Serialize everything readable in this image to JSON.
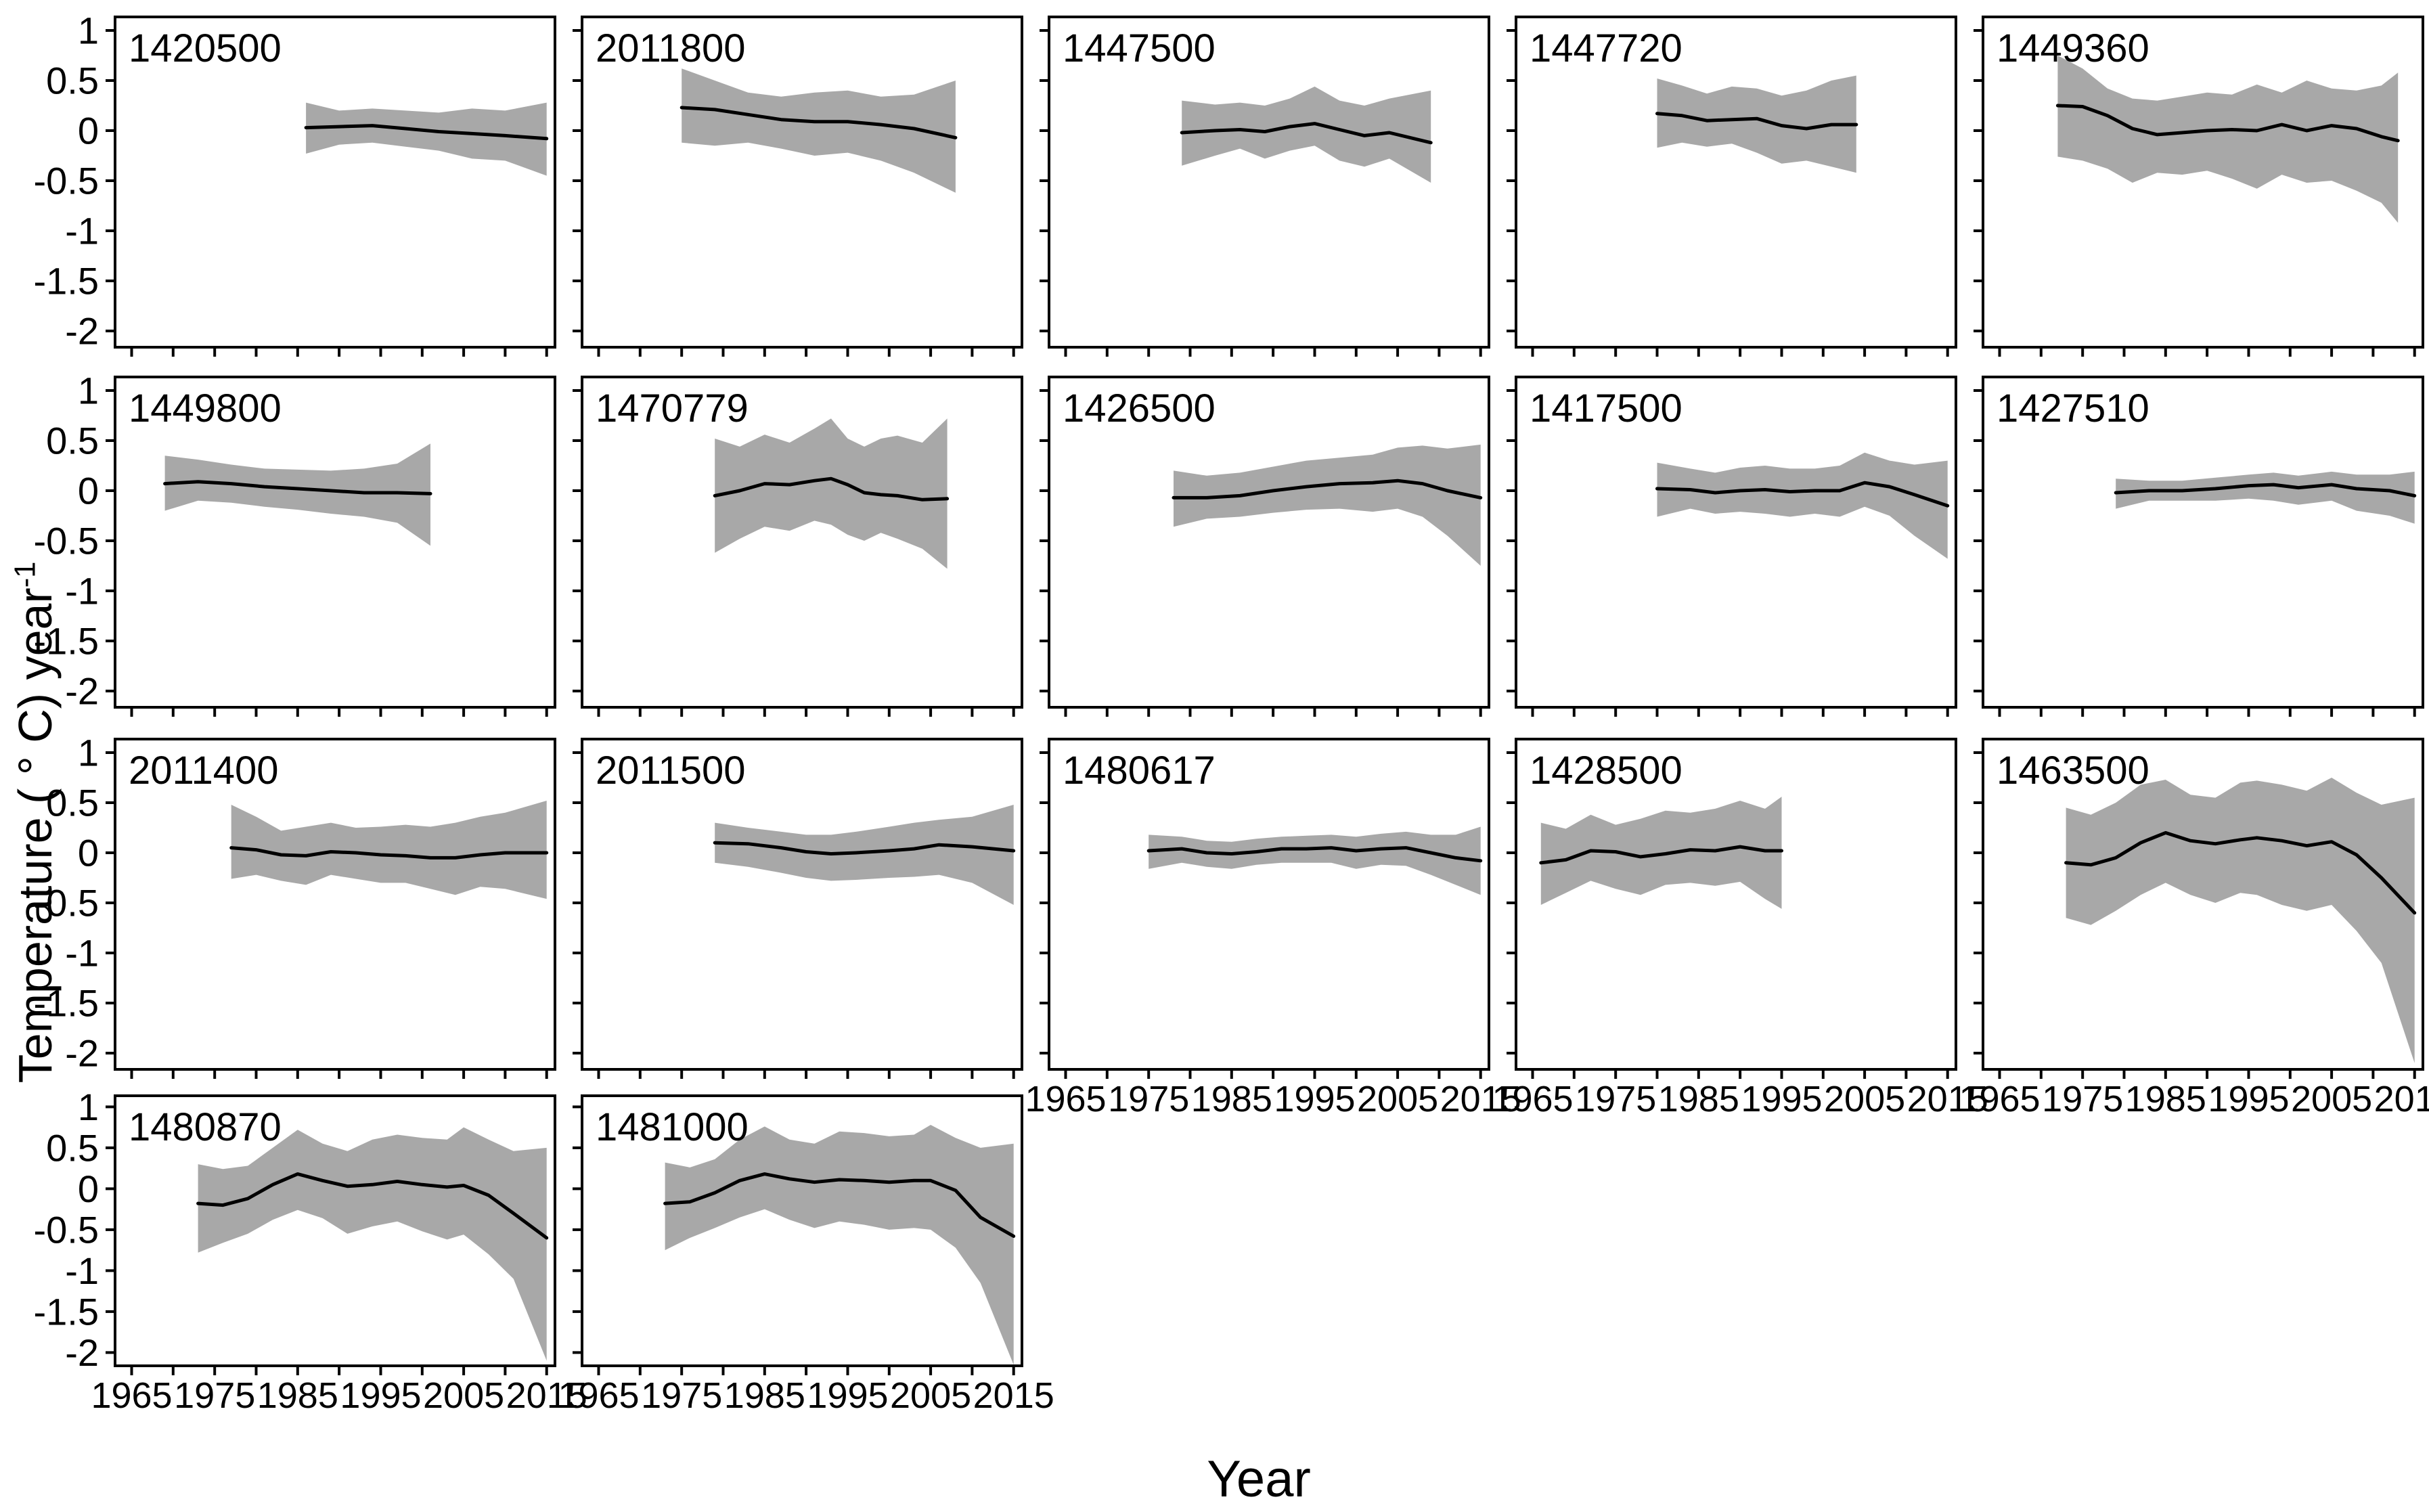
{
  "figure": {
    "x_axis_title": "Year",
    "y_axis_title_main": "Temperature ( ° C) year",
    "y_axis_title_sup": "-1",
    "line_color": "#000000",
    "band_color": "#a8a8a8",
    "background_color": "#ffffff",
    "y_ticks": [
      1,
      0.5,
      0,
      -0.5,
      -1,
      -1.5,
      -2
    ],
    "y_tick_labels": [
      "1",
      "0.5",
      "0",
      "-0.5",
      "-1",
      "-1.5",
      "-2"
    ],
    "x_minor_tick_years": [
      1965,
      1970,
      1975,
      1980,
      1985,
      1990,
      1995,
      2000,
      2005,
      2010,
      2015
    ],
    "x_labeled_years": [
      1965,
      1975,
      1985,
      1995,
      2005,
      2015
    ],
    "x_tick_labels": [
      "1965",
      "1975",
      "1985",
      "1995",
      "2005",
      "2015"
    ],
    "ylim": [
      -2,
      1
    ],
    "xlim": [
      1963,
      2016
    ],
    "grid": "off",
    "legend": "none",
    "columns": 5,
    "rows": 4
  },
  "chart_data": [
    {
      "type": "line",
      "station": "1420500",
      "x": [
        1986,
        1990,
        1994,
        1998,
        2002,
        2006,
        2010,
        2015
      ],
      "mean": [
        0.03,
        0.04,
        0.05,
        0.02,
        -0.01,
        -0.03,
        -0.05,
        -0.08
      ],
      "upper": [
        0.28,
        0.2,
        0.22,
        0.2,
        0.18,
        0.22,
        0.2,
        0.28
      ],
      "lower": [
        -0.23,
        -0.14,
        -0.12,
        -0.16,
        -0.2,
        -0.28,
        -0.3,
        -0.45
      ]
    },
    {
      "type": "line",
      "station": "2011800",
      "x": [
        1975,
        1979,
        1983,
        1987,
        1991,
        1995,
        1999,
        2003,
        2008
      ],
      "mean": [
        0.23,
        0.21,
        0.16,
        0.11,
        0.09,
        0.09,
        0.06,
        0.02,
        -0.07
      ],
      "upper": [
        0.62,
        0.5,
        0.38,
        0.34,
        0.38,
        0.4,
        0.34,
        0.36,
        0.5
      ],
      "lower": [
        -0.12,
        -0.15,
        -0.12,
        -0.18,
        -0.25,
        -0.22,
        -0.3,
        -0.42,
        -0.62
      ]
    },
    {
      "type": "line",
      "station": "1447500",
      "x": [
        1979,
        1983,
        1986,
        1989,
        1992,
        1995,
        1998,
        2001,
        2004,
        2009
      ],
      "mean": [
        -0.02,
        0.0,
        0.01,
        -0.01,
        0.04,
        0.07,
        0.01,
        -0.05,
        -0.02,
        -0.12
      ],
      "upper": [
        0.3,
        0.26,
        0.28,
        0.25,
        0.32,
        0.44,
        0.3,
        0.25,
        0.32,
        0.4
      ],
      "lower": [
        -0.35,
        -0.25,
        -0.18,
        -0.28,
        -0.2,
        -0.15,
        -0.3,
        -0.36,
        -0.28,
        -0.52
      ]
    },
    {
      "type": "line",
      "station": "1447720",
      "x": [
        1980,
        1983,
        1986,
        1989,
        1992,
        1995,
        1998,
        2001,
        2004
      ],
      "mean": [
        0.17,
        0.15,
        0.1,
        0.11,
        0.12,
        0.05,
        0.02,
        0.06,
        0.06
      ],
      "upper": [
        0.52,
        0.45,
        0.37,
        0.44,
        0.42,
        0.35,
        0.4,
        0.5,
        0.55
      ],
      "lower": [
        -0.17,
        -0.12,
        -0.16,
        -0.13,
        -0.22,
        -0.33,
        -0.3,
        -0.36,
        -0.42
      ]
    },
    {
      "type": "line",
      "station": "1449360",
      "x": [
        1972,
        1975,
        1978,
        1981,
        1984,
        1987,
        1990,
        1993,
        1996,
        1999,
        2002,
        2005,
        2008,
        2011,
        2013
      ],
      "mean": [
        0.25,
        0.24,
        0.15,
        0.02,
        -0.04,
        -0.02,
        0.0,
        0.01,
        0.0,
        0.06,
        0.0,
        0.05,
        0.02,
        -0.06,
        -0.1
      ],
      "upper": [
        0.75,
        0.62,
        0.42,
        0.32,
        0.3,
        0.34,
        0.38,
        0.36,
        0.46,
        0.38,
        0.5,
        0.42,
        0.4,
        0.45,
        0.58
      ],
      "lower": [
        -0.26,
        -0.3,
        -0.38,
        -0.52,
        -0.42,
        -0.44,
        -0.4,
        -0.48,
        -0.58,
        -0.44,
        -0.52,
        -0.5,
        -0.6,
        -0.72,
        -0.92
      ]
    },
    {
      "type": "line",
      "station": "1449800",
      "x": [
        1969,
        1973,
        1977,
        1981,
        1985,
        1989,
        1993,
        1997,
        2001
      ],
      "mean": [
        0.07,
        0.09,
        0.07,
        0.04,
        0.02,
        0.0,
        -0.02,
        -0.02,
        -0.03
      ],
      "upper": [
        0.35,
        0.31,
        0.26,
        0.22,
        0.21,
        0.2,
        0.22,
        0.27,
        0.47
      ],
      "lower": [
        -0.2,
        -0.1,
        -0.12,
        -0.16,
        -0.19,
        -0.23,
        -0.26,
        -0.32,
        -0.55
      ]
    },
    {
      "type": "line",
      "station": "1470779",
      "x": [
        1979,
        1982,
        1985,
        1988,
        1991,
        1993,
        1995,
        1997,
        1999,
        2001,
        2004,
        2007
      ],
      "mean": [
        -0.05,
        0.0,
        0.07,
        0.06,
        0.1,
        0.12,
        0.06,
        -0.02,
        -0.04,
        -0.05,
        -0.09,
        -0.08
      ],
      "upper": [
        0.52,
        0.44,
        0.56,
        0.48,
        0.62,
        0.72,
        0.52,
        0.44,
        0.52,
        0.55,
        0.48,
        0.72
      ],
      "lower": [
        -0.62,
        -0.48,
        -0.36,
        -0.4,
        -0.3,
        -0.34,
        -0.44,
        -0.5,
        -0.42,
        -0.48,
        -0.58,
        -0.78
      ]
    },
    {
      "type": "line",
      "station": "1426500",
      "x": [
        1978,
        1982,
        1986,
        1990,
        1994,
        1998,
        2002,
        2005,
        2008,
        2011,
        2015
      ],
      "mean": [
        -0.07,
        -0.07,
        -0.05,
        0.0,
        0.04,
        0.07,
        0.08,
        0.1,
        0.07,
        0.0,
        -0.07
      ],
      "upper": [
        0.2,
        0.15,
        0.18,
        0.24,
        0.3,
        0.33,
        0.36,
        0.43,
        0.45,
        0.42,
        0.46
      ],
      "lower": [
        -0.36,
        -0.28,
        -0.26,
        -0.22,
        -0.19,
        -0.18,
        -0.21,
        -0.18,
        -0.26,
        -0.45,
        -0.75
      ]
    },
    {
      "type": "line",
      "station": "1417500",
      "x": [
        1980,
        1984,
        1987,
        1990,
        1993,
        1996,
        1999,
        2002,
        2005,
        2008,
        2011,
        2015
      ],
      "mean": [
        0.02,
        0.01,
        -0.02,
        0.0,
        0.01,
        -0.01,
        0.0,
        0.0,
        0.08,
        0.04,
        -0.04,
        -0.15
      ],
      "upper": [
        0.28,
        0.22,
        0.18,
        0.23,
        0.25,
        0.22,
        0.22,
        0.25,
        0.38,
        0.3,
        0.26,
        0.3
      ],
      "lower": [
        -0.26,
        -0.18,
        -0.23,
        -0.21,
        -0.23,
        -0.26,
        -0.23,
        -0.26,
        -0.16,
        -0.25,
        -0.45,
        -0.68
      ]
    },
    {
      "type": "line",
      "station": "1427510",
      "x": [
        1979,
        1983,
        1987,
        1991,
        1995,
        1998,
        2001,
        2005,
        2008,
        2012,
        2015
      ],
      "mean": [
        -0.02,
        0.0,
        0.0,
        0.02,
        0.05,
        0.06,
        0.03,
        0.06,
        0.02,
        0.0,
        -0.05
      ],
      "upper": [
        0.12,
        0.1,
        0.1,
        0.13,
        0.16,
        0.18,
        0.15,
        0.19,
        0.16,
        0.16,
        0.19
      ],
      "lower": [
        -0.18,
        -0.1,
        -0.1,
        -0.1,
        -0.08,
        -0.1,
        -0.14,
        -0.1,
        -0.2,
        -0.25,
        -0.33
      ]
    },
    {
      "type": "line",
      "station": "2011400",
      "x": [
        1977,
        1980,
        1983,
        1986,
        1989,
        1992,
        1995,
        1998,
        2001,
        2004,
        2007,
        2010,
        2015
      ],
      "mean": [
        0.05,
        0.03,
        -0.02,
        -0.03,
        0.01,
        0.0,
        -0.02,
        -0.03,
        -0.05,
        -0.05,
        -0.02,
        0.0,
        0.0
      ],
      "upper": [
        0.48,
        0.36,
        0.22,
        0.26,
        0.3,
        0.25,
        0.26,
        0.28,
        0.26,
        0.3,
        0.36,
        0.4,
        0.52
      ],
      "lower": [
        -0.26,
        -0.22,
        -0.28,
        -0.32,
        -0.22,
        -0.26,
        -0.3,
        -0.3,
        -0.36,
        -0.42,
        -0.34,
        -0.36,
        -0.46
      ]
    },
    {
      "type": "line",
      "station": "2011500",
      "x": [
        1979,
        1983,
        1987,
        1990,
        1993,
        1996,
        2000,
        2003,
        2006,
        2010,
        2015
      ],
      "mean": [
        0.1,
        0.09,
        0.05,
        0.01,
        -0.01,
        0.0,
        0.02,
        0.04,
        0.08,
        0.06,
        0.02
      ],
      "upper": [
        0.3,
        0.25,
        0.21,
        0.18,
        0.18,
        0.21,
        0.26,
        0.3,
        0.33,
        0.36,
        0.48
      ],
      "lower": [
        -0.1,
        -0.14,
        -0.2,
        -0.25,
        -0.28,
        -0.27,
        -0.25,
        -0.24,
        -0.22,
        -0.3,
        -0.52
      ]
    },
    {
      "type": "line",
      "station": "1480617",
      "x": [
        1975,
        1979,
        1982,
        1985,
        1988,
        1991,
        1994,
        1997,
        2000,
        2003,
        2006,
        2009,
        2012,
        2015
      ],
      "mean": [
        0.02,
        0.04,
        0.0,
        -0.01,
        0.01,
        0.04,
        0.04,
        0.05,
        0.02,
        0.04,
        0.05,
        0.0,
        -0.05,
        -0.08
      ],
      "upper": [
        0.18,
        0.16,
        0.12,
        0.11,
        0.14,
        0.16,
        0.17,
        0.18,
        0.16,
        0.19,
        0.21,
        0.18,
        0.18,
        0.26
      ],
      "lower": [
        -0.16,
        -0.1,
        -0.14,
        -0.16,
        -0.12,
        -0.1,
        -0.1,
        -0.1,
        -0.16,
        -0.12,
        -0.13,
        -0.22,
        -0.32,
        -0.42
      ]
    },
    {
      "type": "line",
      "station": "1428500",
      "x": [
        1966,
        1969,
        1972,
        1975,
        1978,
        1981,
        1984,
        1987,
        1990,
        1993,
        1995
      ],
      "mean": [
        -0.1,
        -0.07,
        0.02,
        0.01,
        -0.04,
        -0.01,
        0.03,
        0.02,
        0.06,
        0.02,
        0.02
      ],
      "upper": [
        0.3,
        0.24,
        0.38,
        0.28,
        0.34,
        0.42,
        0.4,
        0.44,
        0.52,
        0.44,
        0.56
      ],
      "lower": [
        -0.52,
        -0.4,
        -0.28,
        -0.36,
        -0.42,
        -0.32,
        -0.3,
        -0.33,
        -0.29,
        -0.46,
        -0.56
      ]
    },
    {
      "type": "line",
      "station": "1463500",
      "x": [
        1973,
        1976,
        1979,
        1982,
        1985,
        1988,
        1991,
        1994,
        1996,
        1999,
        2002,
        2005,
        2008,
        2011,
        2015
      ],
      "mean": [
        -0.1,
        -0.12,
        -0.05,
        0.1,
        0.2,
        0.12,
        0.09,
        0.13,
        0.15,
        0.12,
        0.07,
        0.11,
        -0.02,
        -0.25,
        -0.6
      ],
      "upper": [
        0.45,
        0.38,
        0.5,
        0.68,
        0.73,
        0.58,
        0.55,
        0.7,
        0.72,
        0.68,
        0.62,
        0.75,
        0.6,
        0.48,
        0.55
      ],
      "lower": [
        -0.65,
        -0.72,
        -0.58,
        -0.42,
        -0.3,
        -0.42,
        -0.5,
        -0.4,
        -0.42,
        -0.52,
        -0.58,
        -0.52,
        -0.78,
        -1.1,
        -2.1
      ]
    },
    {
      "type": "line",
      "station": "1480870",
      "x": [
        1973,
        1976,
        1979,
        1982,
        1985,
        1988,
        1991,
        1994,
        1997,
        2000,
        2003,
        2005,
        2008,
        2011,
        2015
      ],
      "mean": [
        -0.18,
        -0.2,
        -0.12,
        0.05,
        0.18,
        0.1,
        0.03,
        0.05,
        0.09,
        0.05,
        0.02,
        0.04,
        -0.08,
        -0.3,
        -0.6
      ],
      "upper": [
        0.3,
        0.24,
        0.28,
        0.5,
        0.72,
        0.55,
        0.46,
        0.6,
        0.66,
        0.62,
        0.6,
        0.75,
        0.6,
        0.46,
        0.5
      ],
      "lower": [
        -0.78,
        -0.66,
        -0.55,
        -0.38,
        -0.26,
        -0.36,
        -0.55,
        -0.46,
        -0.4,
        -0.52,
        -0.62,
        -0.56,
        -0.8,
        -1.1,
        -2.1
      ]
    },
    {
      "type": "line",
      "station": "1481000",
      "x": [
        1973,
        1976,
        1979,
        1982,
        1985,
        1988,
        1991,
        1994,
        1997,
        2000,
        2003,
        2005,
        2008,
        2011,
        2015
      ],
      "mean": [
        -0.18,
        -0.16,
        -0.05,
        0.1,
        0.18,
        0.12,
        0.08,
        0.11,
        0.1,
        0.08,
        0.1,
        0.1,
        -0.02,
        -0.35,
        -0.58
      ],
      "upper": [
        0.32,
        0.26,
        0.36,
        0.6,
        0.76,
        0.6,
        0.55,
        0.7,
        0.68,
        0.64,
        0.66,
        0.78,
        0.62,
        0.5,
        0.55
      ],
      "lower": [
        -0.75,
        -0.6,
        -0.48,
        -0.35,
        -0.25,
        -0.38,
        -0.48,
        -0.4,
        -0.44,
        -0.5,
        -0.48,
        -0.5,
        -0.72,
        -1.15,
        -2.15
      ]
    }
  ]
}
